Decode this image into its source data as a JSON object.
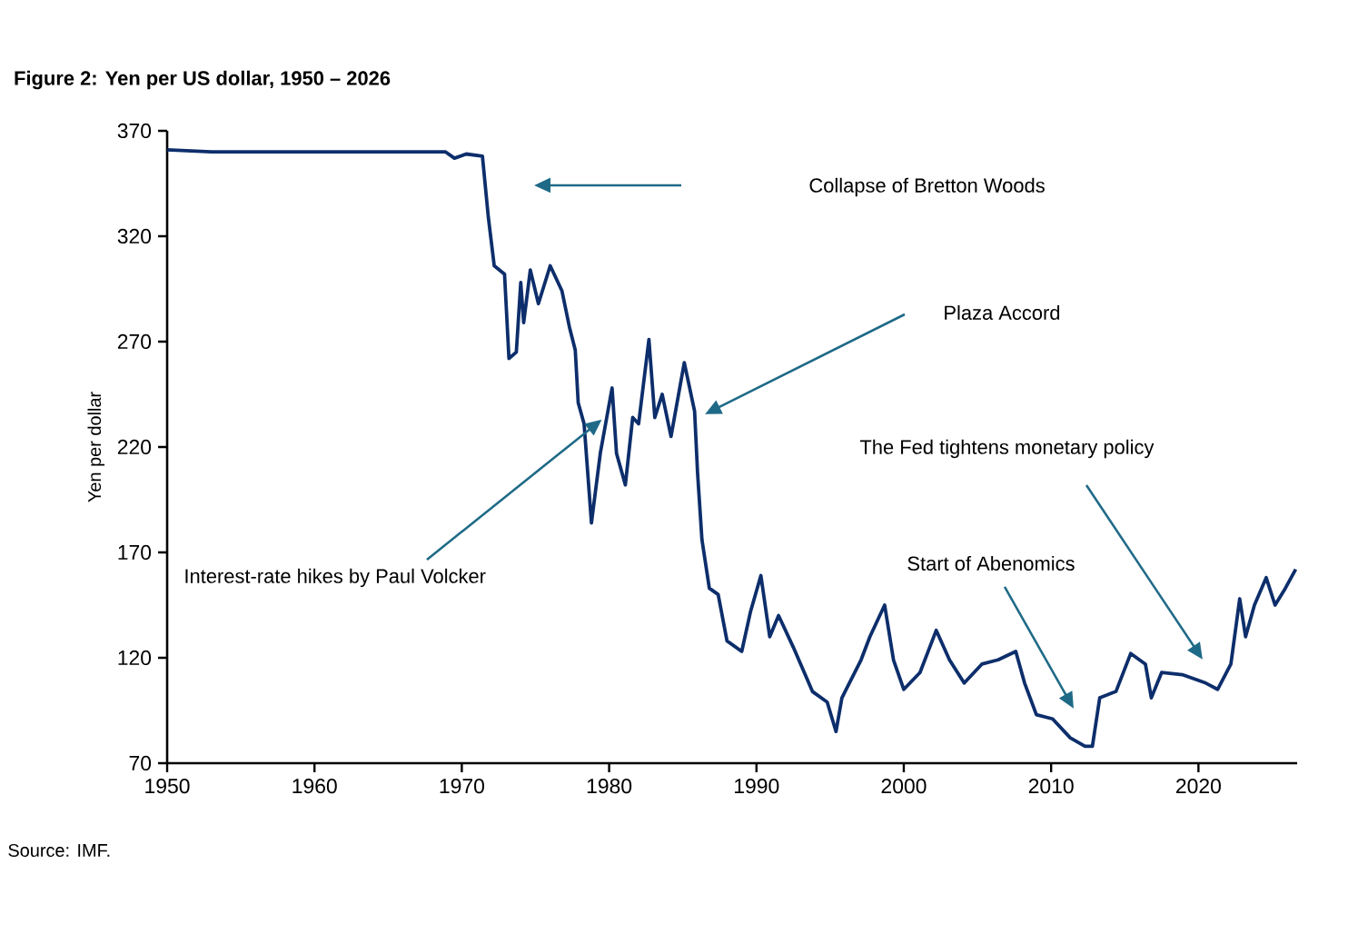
{
  "chart_data": {
    "type": "line",
    "title": "Figure 2: Yen per US dollar, 1950 – 2026",
    "ylabel": "Yen per dollar",
    "annotations": [
      "Collapse of Bretton Woods",
      "Plaza Accord",
      "The Fed tightens monetary policy",
      "Start of Abenomics",
      {
        "text": "Interest-rate hikes by Paul Volcker",
        "x": 1979.5,
        "y": 233
      },
      "Source: IMF."
    ],
    "x": [
      1950,
      1953,
      1968.9,
      1969.5,
      1970.3,
      1971.4,
      1971.8,
      1972.2,
      1972.9,
      1973.2,
      1973.7,
      1974.0,
      1974.2,
      1974.65,
      1975.2,
      1976.0,
      1976.8,
      1977.3,
      1977.7,
      1977.9,
      1978.3,
      1978.8,
      1979.4,
      1980.2,
      1980.5,
      1981.1,
      1981.6,
      1982.0,
      1982.7,
      1983.1,
      1983.6,
      1984.2,
      1985.1,
      1985.8,
      1986.0,
      1986.3,
      1986.8,
      1987.4,
      1988.0,
      1989.0,
      1989.6,
      1990.3,
      1990.9,
      1991.5,
      1992.5,
      1993.8,
      1994.8,
      1995.4,
      1995.8,
      1997.1,
      1997.7,
      1998.7,
      1999.3,
      2000.0,
      2001.1,
      2002.2,
      2003.1,
      2004.1,
      2005.3,
      2006.4,
      2007.6,
      2008.2,
      2009.0,
      2010.1,
      2011.3,
      2012.3,
      2012.8,
      2013.3,
      2014.4,
      2015.4,
      2016.4,
      2016.8,
      2017.5,
      2018.9,
      2020.5,
      2021.3,
      2022.2,
      2022.8,
      2023.2,
      2023.8,
      2024.6,
      2025.2,
      2025.9,
      2026.6
    ],
    "values": [
      361,
      360,
      360,
      357,
      359,
      358,
      329,
      306,
      302,
      262,
      265,
      298,
      279,
      304,
      288,
      306,
      294,
      277,
      266,
      241,
      231,
      184,
      217,
      248,
      217,
      202,
      234,
      231,
      271,
      234,
      245,
      225,
      260,
      237,
      208,
      176,
      153,
      150,
      128,
      123,
      142,
      159,
      130,
      140,
      125,
      104,
      99,
      85,
      101,
      119,
      130,
      145,
      119,
      105,
      113,
      133,
      119,
      108,
      117,
      119,
      123,
      108,
      93,
      91,
      82,
      78,
      78,
      101,
      104,
      122,
      117,
      101,
      113,
      112,
      108,
      105,
      117,
      148,
      130,
      145,
      158,
      145,
      153,
      162
    ],
    "color": "#0d2e6b",
    "xlim": [
      1950,
      2026.7
    ],
    "ylim": [
      70,
      370
    ],
    "xticks": [
      1950,
      1960,
      1970,
      1980,
      1990,
      2000,
      2010,
      2020
    ],
    "yticks": [
      70,
      120,
      170,
      220,
      270,
      320,
      370
    ],
    "grid": false,
    "marker": "none",
    "line_style": "solid"
  }
}
